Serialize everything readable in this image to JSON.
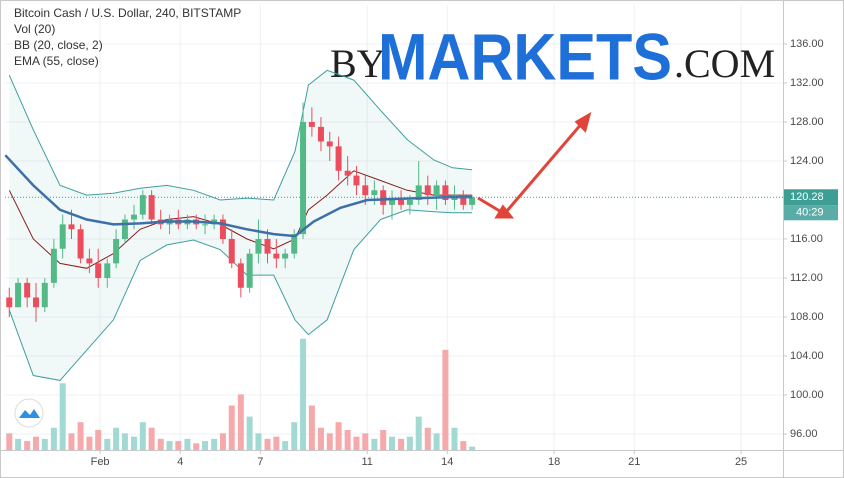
{
  "chart_data": {
    "type": "candlestick",
    "title": "Bitcoin Cash / U.S. Dollar, 240, BITSTAMP",
    "watermark": {
      "prefix": "BY",
      "main": "MARKETS",
      "suffix": ".COM"
    },
    "x": [
      -2.4,
      -2.07,
      -1.73,
      -1.4,
      -1.07,
      -0.73,
      -0.4,
      -0.07,
      0.27,
      0.6,
      0.93,
      1.27,
      1.6,
      1.93,
      2.27,
      2.6,
      2.93,
      3.27,
      3.6,
      3.93,
      4.27,
      4.6,
      4.93,
      5.27,
      5.6,
      5.93,
      6.27,
      6.6,
      6.93,
      7.27,
      7.6,
      7.93,
      8.27,
      8.6,
      8.93,
      9.27,
      9.6,
      9.93,
      10.27,
      10.6,
      10.93,
      11.27,
      11.6,
      11.93,
      12.27,
      12.6,
      12.93,
      13.27,
      13.6,
      13.93,
      14.27,
      14.6,
      14.93
    ],
    "open": [
      110,
      109,
      111.5,
      110,
      109,
      111.5,
      115,
      117.5,
      117,
      114,
      113.5,
      112,
      113.5,
      116,
      118,
      118.5,
      120.5,
      118,
      117.5,
      118,
      117.5,
      118,
      117.5,
      117.5,
      118,
      116,
      113.5,
      111,
      114.5,
      116,
      114.5,
      114,
      114.5,
      116.5,
      128,
      127.5,
      126,
      125.5,
      123,
      122.5,
      121.5,
      120.5,
      121,
      119.5,
      120,
      119.5,
      120,
      121.5,
      120.5,
      121.5,
      120,
      120.5,
      119.5
    ],
    "high": [
      111,
      112,
      112,
      111.5,
      112,
      116,
      118.5,
      119,
      117.5,
      115,
      115,
      114,
      117,
      118.5,
      119.5,
      121,
      121,
      119,
      118.5,
      119,
      118.5,
      118.5,
      118.5,
      118.5,
      118.5,
      117,
      114,
      115,
      118,
      117,
      116,
      115,
      117,
      130,
      129.5,
      128.5,
      127,
      126.5,
      124.5,
      123.5,
      122.5,
      122,
      121.5,
      121,
      121,
      120.5,
      124,
      122.5,
      122,
      122,
      121.5,
      121,
      120.5
    ],
    "low": [
      108,
      109,
      109,
      107.5,
      108.5,
      111,
      114,
      116,
      113.5,
      112.5,
      111,
      111,
      113,
      115.5,
      117,
      118,
      117.5,
      117,
      116.5,
      117,
      117,
      117,
      116.5,
      117,
      115.5,
      113,
      110,
      110.5,
      113.5,
      113.5,
      113,
      113,
      114,
      116,
      126.5,
      125,
      124,
      122,
      121.5,
      120.5,
      119.5,
      119.5,
      118.5,
      118,
      119,
      118.5,
      119.5,
      119.5,
      119,
      119.5,
      119,
      119,
      119
    ],
    "close": [
      109,
      111.5,
      110,
      109,
      111.5,
      115,
      117.5,
      117,
      114,
      113.5,
      112,
      113.5,
      116,
      118,
      118.5,
      120.5,
      118,
      117.5,
      118,
      117.5,
      118,
      117.5,
      117.5,
      118,
      116,
      113.5,
      111,
      114.5,
      116,
      114.5,
      114,
      114.5,
      116.5,
      128,
      127.5,
      126,
      125.5,
      123,
      122.5,
      121.5,
      120.5,
      121,
      119.5,
      120,
      119.5,
      120,
      121.5,
      120.5,
      121.5,
      120,
      120.5,
      119.5,
      120.28
    ],
    "up_color": "#53b987",
    "down_color": "#eb4d5c",
    "volume": {
      "name": "Vol (20)",
      "lim": [
        0,
        400
      ],
      "up_color": "#a3d9d3",
      "down_color": "#f5a9ab",
      "values": [
        15,
        10,
        8,
        12,
        10,
        20,
        60,
        15,
        25,
        12,
        18,
        10,
        20,
        15,
        12,
        25,
        20,
        10,
        8,
        8,
        10,
        6,
        8,
        10,
        15,
        40,
        50,
        30,
        15,
        10,
        12,
        8,
        25,
        100,
        40,
        20,
        15,
        25,
        18,
        12,
        15,
        10,
        18,
        12,
        10,
        12,
        30,
        20,
        15,
        90,
        20,
        8,
        3
      ]
    },
    "bands": {
      "name": "BB (20, close, 2)",
      "color": "#3f9ea0",
      "fill": "rgba(63,158,160,0.07)",
      "basis_color": "#8c1c1c",
      "x": [
        -2.4,
        -1.5,
        -0.5,
        0.5,
        1.5,
        2.5,
        3.5,
        4.5,
        5.5,
        6.5,
        7.5,
        8.3,
        8.8,
        9.5,
        10.5,
        11.5,
        12.5,
        13.5,
        14.2,
        14.93
      ],
      "upper": [
        132.8,
        127.2,
        121.5,
        120.5,
        120.7,
        121.2,
        121.5,
        121,
        120,
        120.2,
        120,
        125,
        131.8,
        133.3,
        132.3,
        129.2,
        126.2,
        124.1,
        123.3,
        123.1
      ],
      "basis": [
        121,
        116,
        113.5,
        113,
        114.5,
        117,
        118,
        118.3,
        117.5,
        116,
        115,
        116,
        119,
        120.5,
        123,
        122,
        121,
        120.5,
        120.5,
        120.5
      ],
      "lower": [
        108.7,
        102,
        101.5,
        104.6,
        107.7,
        113.8,
        115.4,
        115.9,
        114.9,
        112.3,
        112.3,
        107.7,
        106.2,
        107.7,
        114.9,
        118,
        119,
        118.8,
        118.7,
        118.7
      ]
    },
    "ema": {
      "name": "EMA (55, close)",
      "color": "#3d6fa8",
      "x": [
        -2.55,
        -1.5,
        -0.5,
        0.5,
        1.5,
        2.5,
        3.5,
        4.5,
        5.5,
        6.5,
        7.5,
        8.3,
        9,
        10,
        11,
        12,
        13,
        14,
        14.93
      ],
      "values": [
        124.6,
        121.5,
        119,
        118,
        117.5,
        117.6,
        117.8,
        117.8,
        117.6,
        117,
        116.5,
        116.3,
        117.8,
        119.2,
        120,
        120.1,
        120.2,
        120.3,
        120.3
      ]
    },
    "last_price": 120.28,
    "last_price_color": "#3d9e96",
    "countdown": "40:29",
    "xlim": [
      -2.56,
      26.57
    ],
    "xticks": [
      {
        "value": 1,
        "label": "Feb"
      },
      4,
      7,
      11,
      14,
      18,
      21,
      25
    ],
    "ylim": [
      94.36,
      140
    ],
    "yticks": [
      {
        "value": 96,
        "label": "96.00"
      },
      {
        "value": 100,
        "label": "100.00"
      },
      {
        "value": 104,
        "label": "104.00"
      },
      {
        "value": 108,
        "label": "108.00"
      },
      {
        "value": 112,
        "label": "112.00"
      },
      {
        "value": 116,
        "label": "116.00"
      },
      {
        "value": 124,
        "label": "124.00"
      },
      {
        "value": 128,
        "label": "128.00"
      },
      {
        "value": 132,
        "label": "132.00"
      },
      {
        "value": 136,
        "label": "136.00"
      }
    ],
    "grid": true
  }
}
